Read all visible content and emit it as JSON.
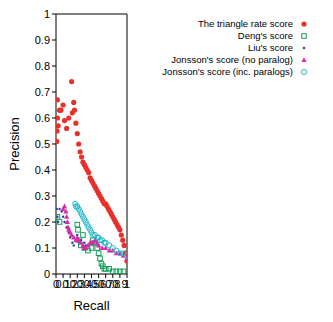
{
  "chart_data": {
    "type": "scatter",
    "x_label": "Recall",
    "y_label": "Precision",
    "xlim": [
      0,
      1
    ],
    "ylim": [
      0,
      1
    ],
    "xticks": [
      0,
      0.1,
      0.2,
      0.3,
      0.4,
      0.5,
      0.6,
      0.7,
      0.8,
      0.9,
      1
    ],
    "yticks": [
      0,
      0.1,
      0.2,
      0.3,
      0.4,
      0.5,
      0.6,
      0.7,
      0.8,
      0.9,
      1
    ],
    "grid": false,
    "legend": "upper right",
    "series": [
      {
        "name": "The triangle rate score",
        "color": "#e8302a",
        "marker": "circle",
        "x": [
          0.01,
          0.015,
          0.02,
          0.02,
          0.03,
          0.05,
          0.07,
          0.1,
          0.12,
          0.15,
          0.18,
          0.22,
          0.23,
          0.25,
          0.26,
          0.28,
          0.3,
          0.32,
          0.34,
          0.36,
          0.38,
          0.4,
          0.42,
          0.44,
          0.46,
          0.48,
          0.5,
          0.52,
          0.54,
          0.56,
          0.58,
          0.6,
          0.62,
          0.64,
          0.66,
          0.68,
          0.7,
          0.72,
          0.74,
          0.76,
          0.78,
          0.8,
          0.82,
          0.84,
          0.86,
          0.88,
          0.9,
          0.92,
          0.94,
          0.96,
          0.98,
          1.0
        ],
        "values": [
          0.51,
          0.55,
          0.6,
          0.67,
          0.57,
          0.63,
          0.63,
          0.65,
          0.59,
          0.56,
          0.6,
          0.74,
          0.62,
          0.66,
          0.63,
          0.58,
          0.54,
          0.5,
          0.47,
          0.45,
          0.43,
          0.42,
          0.41,
          0.4,
          0.39,
          0.37,
          0.36,
          0.35,
          0.34,
          0.33,
          0.32,
          0.31,
          0.3,
          0.29,
          0.28,
          0.27,
          0.27,
          0.26,
          0.25,
          0.24,
          0.23,
          0.22,
          0.21,
          0.2,
          0.19,
          0.18,
          0.17,
          0.15,
          0.13,
          0.11,
          0.08,
          0.05
        ]
      },
      {
        "name": "Deng's score",
        "color": "#14a05a",
        "marker": "square",
        "x": [
          0.02,
          0.05,
          0.3,
          0.31,
          0.33,
          0.35,
          0.38,
          0.4,
          0.45,
          0.5,
          0.52,
          0.55,
          0.58,
          0.6,
          0.62,
          0.64,
          0.66,
          0.68,
          0.7,
          0.75,
          0.8,
          0.85,
          0.9,
          0.95
        ],
        "values": [
          0.22,
          0.2,
          0.19,
          0.17,
          0.13,
          0.11,
          0.15,
          0.1,
          0.09,
          0.1,
          0.13,
          0.12,
          0.1,
          0.08,
          0.06,
          0.04,
          0.03,
          0.02,
          0.02,
          0.02,
          0.01,
          0.01,
          0.01,
          0.01
        ]
      },
      {
        "name": "Liu's score",
        "color": "#2b3fa8",
        "marker": "dot",
        "x": [
          0.01,
          0.02,
          0.03,
          0.05,
          0.08,
          0.1,
          0.12,
          0.15,
          0.18,
          0.2,
          0.23,
          0.25,
          0.3,
          0.35,
          0.4,
          0.42
        ],
        "values": [
          0.25,
          0.22,
          0.2,
          0.25,
          0.24,
          0.22,
          0.2,
          0.18,
          0.16,
          0.14,
          0.12,
          0.11,
          0.15,
          0.13,
          0.12,
          0.11
        ]
      },
      {
        "name": "Jonsson's score (no paralog)",
        "color": "#d62ca8",
        "marker": "triangle",
        "x": [
          0.1,
          0.12,
          0.14,
          0.15,
          0.16,
          0.17,
          0.18,
          0.2,
          0.22,
          0.25,
          0.28,
          0.3,
          0.32,
          0.35,
          0.38,
          0.4,
          0.42,
          0.45,
          0.48,
          0.5,
          0.52,
          0.55,
          0.58,
          0.6,
          0.65,
          0.7,
          0.75,
          0.8,
          0.85,
          0.9,
          0.95,
          1.0
        ],
        "values": [
          0.25,
          0.26,
          0.24,
          0.22,
          0.2,
          0.18,
          0.17,
          0.16,
          0.15,
          0.14,
          0.13,
          0.14,
          0.13,
          0.12,
          0.11,
          0.1,
          0.1,
          0.11,
          0.12,
          0.12,
          0.12,
          0.13,
          0.12,
          0.11,
          0.1,
          0.1,
          0.09,
          0.09,
          0.08,
          0.08,
          0.07,
          0.06
        ]
      },
      {
        "name": "Jonsson's score (inc. paralogs)",
        "color": "#1fb5c8",
        "marker": "circle_open",
        "x": [
          0.27,
          0.28,
          0.3,
          0.32,
          0.34,
          0.36,
          0.38,
          0.4,
          0.42,
          0.44,
          0.46,
          0.48,
          0.5,
          0.52,
          0.55,
          0.58,
          0.6,
          0.62,
          0.65,
          0.68,
          0.7,
          0.75,
          0.8,
          0.85,
          0.9,
          0.95,
          1.0
        ],
        "values": [
          0.27,
          0.26,
          0.26,
          0.25,
          0.24,
          0.23,
          0.22,
          0.21,
          0.2,
          0.19,
          0.18,
          0.17,
          0.16,
          0.15,
          0.15,
          0.14,
          0.14,
          0.13,
          0.13,
          0.12,
          0.12,
          0.11,
          0.1,
          0.09,
          0.08,
          0.08,
          0.07
        ]
      }
    ]
  }
}
